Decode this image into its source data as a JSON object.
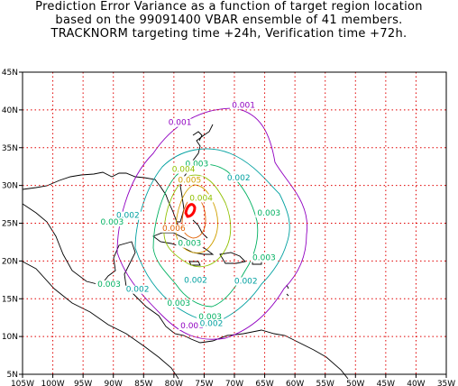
{
  "title": {
    "line1": "Prediction Error Variance as a function of target region location",
    "line2": "based on the 99091400 VBAR ensemble of 41 members.",
    "line3": "TRACKNORM targeting time +24h, Verification time +72h."
  },
  "map": {
    "lon_range": [
      -105,
      -35
    ],
    "lat_range": [
      5,
      45
    ],
    "lon_ticks": [
      -105,
      -100,
      -95,
      -90,
      -85,
      -80,
      -75,
      -70,
      -65,
      -60,
      -55,
      -50,
      -45,
      -40,
      -35
    ],
    "lat_ticks": [
      5,
      10,
      15,
      20,
      25,
      30,
      35,
      40,
      45
    ],
    "lon_tick_labels": [
      "105W",
      "100W",
      "95W",
      "90W",
      "85W",
      "80W",
      "75W",
      "70W",
      "65W",
      "60W",
      "55W",
      "50W",
      "45W",
      "40W",
      "35W"
    ],
    "lat_tick_labels": [
      "5N",
      "10N",
      "15N",
      "20N",
      "25N",
      "30N",
      "35N",
      "40N",
      "45N"
    ],
    "grid": true,
    "grid_color": "#e00000",
    "contour_colors": {
      "0.001": "#9000c0",
      "0.002": "#00a0a0",
      "0.003": "#00b060",
      "0.004": "#90c000",
      "0.005": "#d0a000",
      "0.006": "#e06000",
      "max": "#ff0000"
    },
    "contour_labels": [
      {
        "text": "0.001",
        "lon": -68.5,
        "lat": 40.3,
        "level": "0.001"
      },
      {
        "text": "0.001",
        "lon": -79.0,
        "lat": 38.0,
        "level": "0.001"
      },
      {
        "text": "0.001",
        "lon": -77.0,
        "lat": 11.1,
        "level": "0.001"
      },
      {
        "text": "0.002",
        "lon": -69.3,
        "lat": 30.7,
        "level": "0.002"
      },
      {
        "text": "0.002",
        "lon": -87.6,
        "lat": 25.7,
        "level": "0.002"
      },
      {
        "text": "0.003",
        "lon": -90.2,
        "lat": 24.8,
        "level": "0.003"
      },
      {
        "text": "0.003",
        "lon": -76.2,
        "lat": 32.5,
        "level": "0.003"
      },
      {
        "text": "0.003",
        "lon": -64.3,
        "lat": 26.0,
        "level": "0.003"
      },
      {
        "text": "0.003",
        "lon": -77.4,
        "lat": 22.0,
        "level": "0.003"
      },
      {
        "text": "0.003",
        "lon": -65.1,
        "lat": 20.1,
        "level": "0.003"
      },
      {
        "text": "0.003",
        "lon": -90.7,
        "lat": 16.6,
        "level": "0.003"
      },
      {
        "text": "0.003",
        "lon": -79.2,
        "lat": 14.1,
        "level": "0.003"
      },
      {
        "text": "0.003",
        "lon": -74.0,
        "lat": 12.3,
        "level": "0.003"
      },
      {
        "text": "0.002",
        "lon": -86.0,
        "lat": 15.9,
        "level": "0.002"
      },
      {
        "text": "0.002",
        "lon": -76.4,
        "lat": 17.1,
        "level": "0.002"
      },
      {
        "text": "0.002",
        "lon": -68.1,
        "lat": 17.0,
        "level": "0.002"
      },
      {
        "text": "0.002",
        "lon": -73.8,
        "lat": 11.4,
        "level": "0.002"
      },
      {
        "text": "0.004",
        "lon": -78.4,
        "lat": 31.8,
        "level": "0.004"
      },
      {
        "text": "0.004",
        "lon": -75.5,
        "lat": 28.0,
        "level": "0.004"
      },
      {
        "text": "0.005",
        "lon": -77.4,
        "lat": 30.4,
        "level": "0.005"
      },
      {
        "text": "0.006",
        "lon": -80.0,
        "lat": 24.0,
        "level": "0.006"
      }
    ]
  }
}
